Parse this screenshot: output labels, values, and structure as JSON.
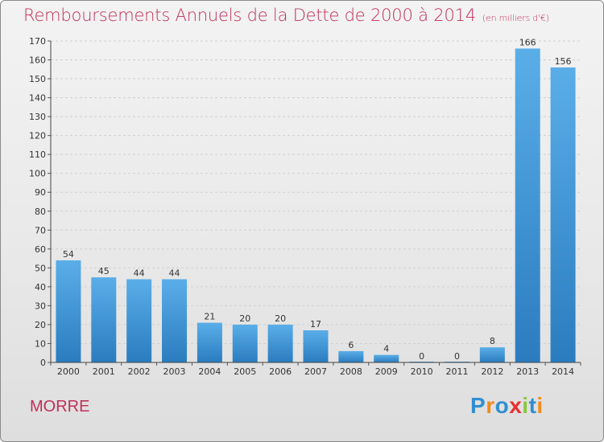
{
  "title": "Remboursements Annuels de la Dette de 2000 à 2014",
  "subtitle": "(en milliers d'€)",
  "commune": "MORRE",
  "logo": {
    "text": "Proxiti",
    "colors": [
      "#2f8fd0",
      "#f08c1e",
      "#2f8fd0",
      "#e8302c",
      "#8cc63f",
      "#2f8fd0",
      "#f08c1e"
    ]
  },
  "colors": {
    "bar_top": "#5aaee8",
    "bar_bottom": "#2a7cbf",
    "title": "#c0305a"
  },
  "chart_data": {
    "type": "bar",
    "categories": [
      "2000",
      "2001",
      "2002",
      "2003",
      "2004",
      "2005",
      "2006",
      "2007",
      "2008",
      "2009",
      "2010",
      "2011",
      "2012",
      "2013",
      "2014"
    ],
    "values": [
      54,
      45,
      44,
      44,
      21,
      20,
      20,
      17,
      6,
      4,
      0,
      0,
      8,
      166,
      156
    ],
    "ylim": [
      0,
      170
    ],
    "yticks": [
      0,
      10,
      20,
      30,
      40,
      50,
      60,
      70,
      80,
      90,
      100,
      110,
      120,
      130,
      140,
      150,
      160,
      170
    ],
    "grid": true
  }
}
